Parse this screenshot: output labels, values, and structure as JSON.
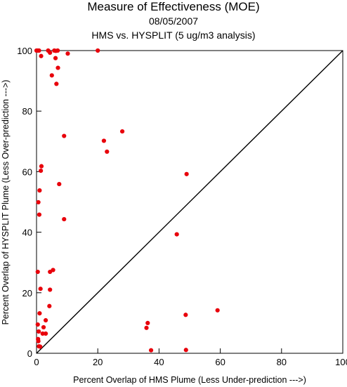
{
  "chart_data": {
    "type": "scatter",
    "title": "Measure of Effectiveness (MOE)",
    "subtitle_date": "08/05/2007",
    "subtitle_analysis": "HMS vs. HYSPLIT  (5 ug/m3 analysis)",
    "xlabel": "Percent Overlap of HMS Plume (Less Under-prediction --->)",
    "ylabel": "Percent Overlap of HYSPLIT Plume (Less Over-prediction --->)",
    "xlim": [
      0,
      100
    ],
    "ylim": [
      0,
      100
    ],
    "xticks": [
      "0",
      "20",
      "40",
      "60",
      "80",
      "100"
    ],
    "yticks": [
      "0",
      "20",
      "40",
      "60",
      "80",
      "100"
    ],
    "grid": false,
    "reference_line": "y = x",
    "marker_color": "#e8000b",
    "points": [
      {
        "x": 0.0,
        "y": 100.0
      },
      {
        "x": 0.4,
        "y": 100.0
      },
      {
        "x": 0.8,
        "y": 100.0
      },
      {
        "x": 1.5,
        "y": 98.2
      },
      {
        "x": 3.8,
        "y": 100.0
      },
      {
        "x": 4.4,
        "y": 99.3
      },
      {
        "x": 5.8,
        "y": 100.0
      },
      {
        "x": 6.3,
        "y": 99.9
      },
      {
        "x": 6.9,
        "y": 100.0
      },
      {
        "x": 6.2,
        "y": 97.5
      },
      {
        "x": 5.0,
        "y": 91.8
      },
      {
        "x": 7.0,
        "y": 94.3
      },
      {
        "x": 6.5,
        "y": 89.0
      },
      {
        "x": 10.2,
        "y": 99.0
      },
      {
        "x": 20.0,
        "y": 100.0
      },
      {
        "x": 9.0,
        "y": 71.8
      },
      {
        "x": 22.0,
        "y": 70.2
      },
      {
        "x": 23.0,
        "y": 66.6
      },
      {
        "x": 28.0,
        "y": 73.3
      },
      {
        "x": 1.6,
        "y": 61.8
      },
      {
        "x": 1.4,
        "y": 60.3
      },
      {
        "x": 7.4,
        "y": 55.9
      },
      {
        "x": 1.0,
        "y": 53.8
      },
      {
        "x": 0.6,
        "y": 49.9
      },
      {
        "x": 0.9,
        "y": 45.8
      },
      {
        "x": 9.0,
        "y": 44.3
      },
      {
        "x": 49.0,
        "y": 59.2
      },
      {
        "x": 45.8,
        "y": 39.3
      },
      {
        "x": 0.4,
        "y": 26.9
      },
      {
        "x": 4.4,
        "y": 26.9
      },
      {
        "x": 5.4,
        "y": 27.5
      },
      {
        "x": 1.3,
        "y": 21.3
      },
      {
        "x": 4.4,
        "y": 21.0
      },
      {
        "x": 4.2,
        "y": 15.6
      },
      {
        "x": 1.0,
        "y": 13.2
      },
      {
        "x": 3.0,
        "y": 10.9
      },
      {
        "x": 0.4,
        "y": 9.5
      },
      {
        "x": 2.3,
        "y": 8.6
      },
      {
        "x": 0.7,
        "y": 7.2
      },
      {
        "x": 2.0,
        "y": 6.5
      },
      {
        "x": 3.0,
        "y": 6.5
      },
      {
        "x": 0.5,
        "y": 4.7
      },
      {
        "x": 0.6,
        "y": 4.0
      },
      {
        "x": 0.8,
        "y": 2.3
      },
      {
        "x": 1.2,
        "y": 2.2
      },
      {
        "x": 36.3,
        "y": 10.0
      },
      {
        "x": 35.9,
        "y": 8.4
      },
      {
        "x": 37.4,
        "y": 1.0
      },
      {
        "x": 48.7,
        "y": 12.7
      },
      {
        "x": 48.8,
        "y": 1.1
      },
      {
        "x": 59.1,
        "y": 14.2
      }
    ]
  }
}
